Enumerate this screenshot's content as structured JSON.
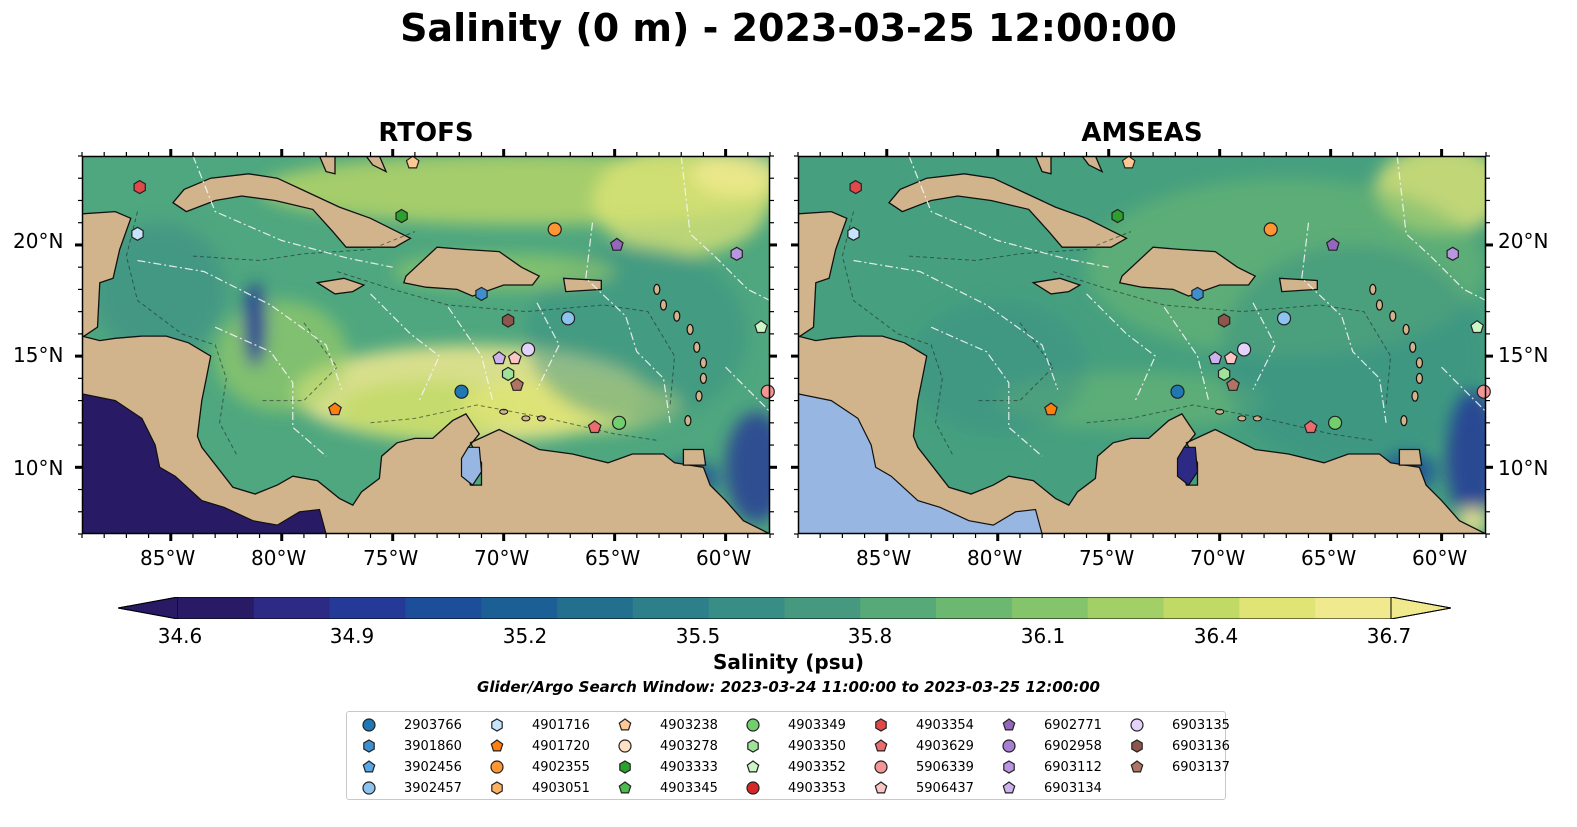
{
  "title": "Salinity (0 m) - 2023-03-25 12:00:00",
  "panels": [
    {
      "title": "RTOFS",
      "variant": "rtofs"
    },
    {
      "title": "AMSEAS",
      "variant": "amseas"
    }
  ],
  "lat_labels": [
    "20°N",
    "15°N",
    "10°N"
  ],
  "lon_labels": [
    "85°W",
    "80°W",
    "75°W",
    "70°W",
    "65°W",
    "60°W"
  ],
  "map_extent": {
    "lon": [
      -89,
      -58
    ],
    "lat": [
      7,
      24
    ]
  },
  "colorbar": {
    "ticks": [
      "34.6",
      "34.9",
      "35.2",
      "35.5",
      "35.8",
      "36.1",
      "36.4",
      "36.7"
    ],
    "label": "Salinity (psu)",
    "colors": [
      "#291a66",
      "#2d2a86",
      "#253a96",
      "#1c4e9a",
      "#1b5f95",
      "#23708e",
      "#2d7f8a",
      "#388d86",
      "#46997f",
      "#58a978",
      "#6db871",
      "#84c56b",
      "#a2d066",
      "#c1da66",
      "#dfe475",
      "#f0e98e"
    ]
  },
  "window_text": "Glider/Argo Search Window: 2023-03-24 11:00:00 to 2023-03-25 12:00:00",
  "colors": {
    "land": "#d2b48c",
    "lake": "#97b6e1",
    "ocean_mid": "#4aa582"
  },
  "floats": [
    {
      "id": "2903766",
      "marker": "circle",
      "color": "#1f77b4"
    },
    {
      "id": "3901860",
      "marker": "hexagon",
      "color": "#3d8fd0"
    },
    {
      "id": "3902456",
      "marker": "pentagon",
      "color": "#5aa7e6"
    },
    {
      "id": "3902457",
      "marker": "circle",
      "color": "#8ec3ef"
    },
    {
      "id": "4901716",
      "marker": "hexagon",
      "color": "#c6e4fb"
    },
    {
      "id": "4901720",
      "marker": "pentagon",
      "color": "#ff7f0e"
    },
    {
      "id": "4902355",
      "marker": "circle",
      "color": "#ff9632"
    },
    {
      "id": "4903051",
      "marker": "hexagon",
      "color": "#ffb060"
    },
    {
      "id": "4903238",
      "marker": "pentagon",
      "color": "#ffc994"
    },
    {
      "id": "4903278",
      "marker": "circle",
      "color": "#ffe0c2"
    },
    {
      "id": "4903333",
      "marker": "hexagon",
      "color": "#2ca02c"
    },
    {
      "id": "4903345",
      "marker": "pentagon",
      "color": "#4cbc4c"
    },
    {
      "id": "4903349",
      "marker": "circle",
      "color": "#72cf6d"
    },
    {
      "id": "4903350",
      "marker": "hexagon",
      "color": "#9fe39a"
    },
    {
      "id": "4903352",
      "marker": "pentagon",
      "color": "#cdf6c6"
    },
    {
      "id": "4903353",
      "marker": "circle",
      "color": "#d62728"
    },
    {
      "id": "4903354",
      "marker": "hexagon",
      "color": "#e0484a"
    },
    {
      "id": "4903629",
      "marker": "pentagon",
      "color": "#ec6b6c"
    },
    {
      "id": "5906339",
      "marker": "circle",
      "color": "#f49596"
    },
    {
      "id": "5906437",
      "marker": "pentagon",
      "color": "#fcc6c5"
    },
    {
      "id": "6902771",
      "marker": "pentagon",
      "color": "#9467bd"
    },
    {
      "id": "6902958",
      "marker": "circle",
      "color": "#a77fd0"
    },
    {
      "id": "6903112",
      "marker": "hexagon",
      "color": "#b897e0"
    },
    {
      "id": "6903134",
      "marker": "pentagon",
      "color": "#ccb3ee"
    },
    {
      "id": "6903135",
      "marker": "circle",
      "color": "#e3d3fa"
    },
    {
      "id": "6903136",
      "marker": "hexagon",
      "color": "#8c564b"
    },
    {
      "id": "6903137",
      "marker": "pentagon",
      "color": "#b07464"
    }
  ],
  "float_positions": [
    {
      "id": "3901860",
      "lon": -71.0,
      "lat": 17.8,
      "marker": "hexagon",
      "color": "#3d8fd0"
    },
    {
      "id": "3902457",
      "lon": -67.1,
      "lat": 16.7,
      "marker": "circle",
      "color": "#8ec3ef"
    },
    {
      "id": "4901716",
      "lon": -86.5,
      "lat": 20.5,
      "marker": "hexagon",
      "color": "#c6e4fb"
    },
    {
      "id": "4901720",
      "lon": -77.6,
      "lat": 12.6,
      "marker": "pentagon",
      "color": "#ff7f0e"
    },
    {
      "id": "4902355",
      "lon": -67.7,
      "lat": 20.7,
      "marker": "circle",
      "color": "#ff9632"
    },
    {
      "id": "4903238",
      "lon": -74.1,
      "lat": 23.7,
      "marker": "pentagon",
      "color": "#ffc994"
    },
    {
      "id": "4903333",
      "lon": -74.6,
      "lat": 21.3,
      "marker": "hexagon",
      "color": "#2ca02c"
    },
    {
      "id": "4903349",
      "lon": -64.8,
      "lat": 12.0,
      "marker": "circle",
      "color": "#72cf6d"
    },
    {
      "id": "4903350",
      "lon": -69.8,
      "lat": 14.2,
      "marker": "hexagon",
      "color": "#9fe39a"
    },
    {
      "id": "4903352",
      "lon": -58.4,
      "lat": 16.3,
      "marker": "pentagon",
      "color": "#cdf6c6"
    },
    {
      "id": "4903354",
      "lon": -86.4,
      "lat": 22.6,
      "marker": "hexagon",
      "color": "#e0484a"
    },
    {
      "id": "4903629",
      "lon": -65.9,
      "lat": 11.8,
      "marker": "pentagon",
      "color": "#ec6b6c"
    },
    {
      "id": "5906339",
      "lon": -58.1,
      "lat": 13.4,
      "marker": "circle",
      "color": "#f49596"
    },
    {
      "id": "5906437",
      "lon": -69.5,
      "lat": 14.9,
      "marker": "pentagon",
      "color": "#fcc6c5"
    },
    {
      "id": "6902771",
      "lon": -64.9,
      "lat": 20.0,
      "marker": "pentagon",
      "color": "#9467bd"
    },
    {
      "id": "6903112",
      "lon": -59.5,
      "lat": 19.6,
      "marker": "hexagon",
      "color": "#b897e0"
    },
    {
      "id": "6903134",
      "lon": -70.2,
      "lat": 14.9,
      "marker": "pentagon",
      "color": "#ccb3ee"
    },
    {
      "id": "6903135",
      "lon": -68.9,
      "lat": 15.3,
      "marker": "circle",
      "color": "#e3d3fa"
    },
    {
      "id": "6903136",
      "lon": -69.8,
      "lat": 16.6,
      "marker": "hexagon",
      "color": "#8c564b"
    },
    {
      "id": "6903137",
      "lon": -69.4,
      "lat": 13.7,
      "marker": "pentagon",
      "color": "#b07464"
    },
    {
      "id": "2903766",
      "lon": -71.9,
      "lat": 13.4,
      "marker": "circle",
      "color": "#1f77b4"
    }
  ]
}
